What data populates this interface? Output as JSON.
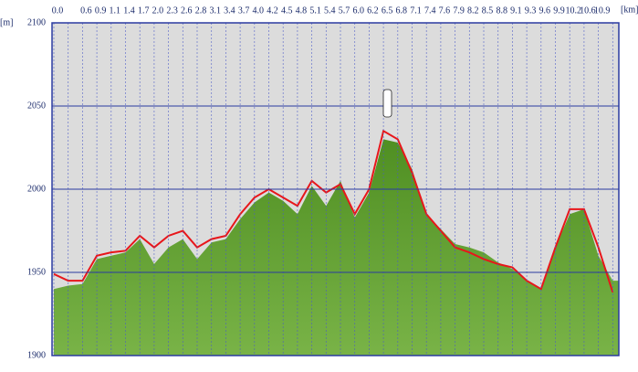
{
  "chart_data": {
    "type": "area-line",
    "x_label": "[km]",
    "y_label": "[m]",
    "categories": [
      "0.0",
      null,
      "0.6",
      "0.9",
      "1.1",
      "1.4",
      "1.7",
      "2.0",
      "2.3",
      "2.6",
      "2.8",
      "3.1",
      "3.4",
      "3.7",
      "4.0",
      "4.2",
      "4.5",
      "4.8",
      "5.1",
      "5.4",
      "5.7",
      "6.0",
      "6.2",
      "6.5",
      "6.8",
      "7.1",
      "7.4",
      "7.6",
      "7.9",
      "8.2",
      "8.5",
      "8.8",
      "9.1",
      "9.3",
      "9.6",
      "9.9",
      "10.2",
      "10.6",
      "10.9",
      null
    ],
    "series": [
      {
        "color": "#5f9b2f",
        "style": "area",
        "values": [
          1940,
          1942,
          1943,
          1958,
          1960,
          1962,
          1970,
          1955,
          1965,
          1970,
          1958,
          1968,
          1970,
          1982,
          1992,
          1998,
          1993,
          1985,
          2002,
          1990,
          2005,
          1983,
          1998,
          2030,
          2028,
          2012,
          1985,
          1976,
          1967,
          1965,
          1962,
          1956,
          1952,
          1945,
          1940,
          1965,
          1985,
          1988,
          1960,
          1945
        ]
      },
      {
        "color": "#e8161a",
        "style": "line",
        "values": [
          1949,
          1945,
          1945,
          1960,
          1962,
          1963,
          1972,
          1965,
          1972,
          1975,
          1965,
          1970,
          1972,
          1985,
          1995,
          2000,
          1995,
          1990,
          2005,
          1998,
          2003,
          1985,
          2000,
          2035,
          2030,
          2010,
          1985,
          1975,
          1965,
          1962,
          1958,
          1955,
          1953,
          1945,
          1940,
          1965,
          1988,
          1988,
          1965,
          1938
        ]
      }
    ],
    "ylim": [
      1900,
      2100
    ],
    "yticks": [
      1900,
      1950,
      2000,
      2050,
      2100
    ],
    "grid": true
  }
}
